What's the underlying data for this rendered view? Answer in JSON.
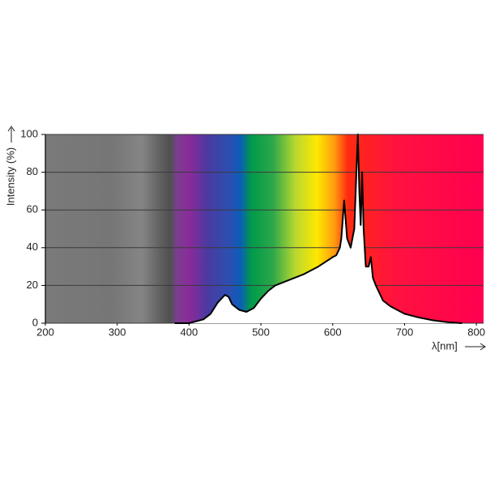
{
  "chart_data": {
    "type": "area",
    "y_label": "Intensity (%)",
    "x_label": "λ[nm]",
    "x": [
      380,
      400,
      420,
      430,
      440,
      450,
      455,
      460,
      470,
      480,
      490,
      500,
      510,
      520,
      540,
      560,
      580,
      600,
      605,
      610,
      612,
      616,
      620,
      625,
      630,
      633,
      635,
      637,
      639,
      641,
      643,
      646,
      650,
      653,
      656,
      660,
      670,
      680,
      700,
      720,
      740,
      760,
      780
    ],
    "values": [
      0,
      0,
      2,
      5,
      11,
      15,
      14,
      10,
      7,
      6,
      8,
      13,
      17,
      20,
      23,
      26,
      30,
      35,
      36,
      40,
      45,
      65,
      45,
      40,
      50,
      80,
      100,
      70,
      52,
      80,
      50,
      30,
      30,
      35,
      24,
      20,
      12,
      9,
      5,
      3,
      1.5,
      0.5,
      0
    ],
    "color": "#000000",
    "fill": "#ffffff",
    "xlim": [
      200,
      810
    ],
    "ylim": [
      0,
      100
    ],
    "xticks": [
      200,
      300,
      400,
      500,
      600,
      700,
      800
    ],
    "yticks": [
      0,
      20,
      40,
      60,
      80,
      100
    ],
    "grid": true
  }
}
